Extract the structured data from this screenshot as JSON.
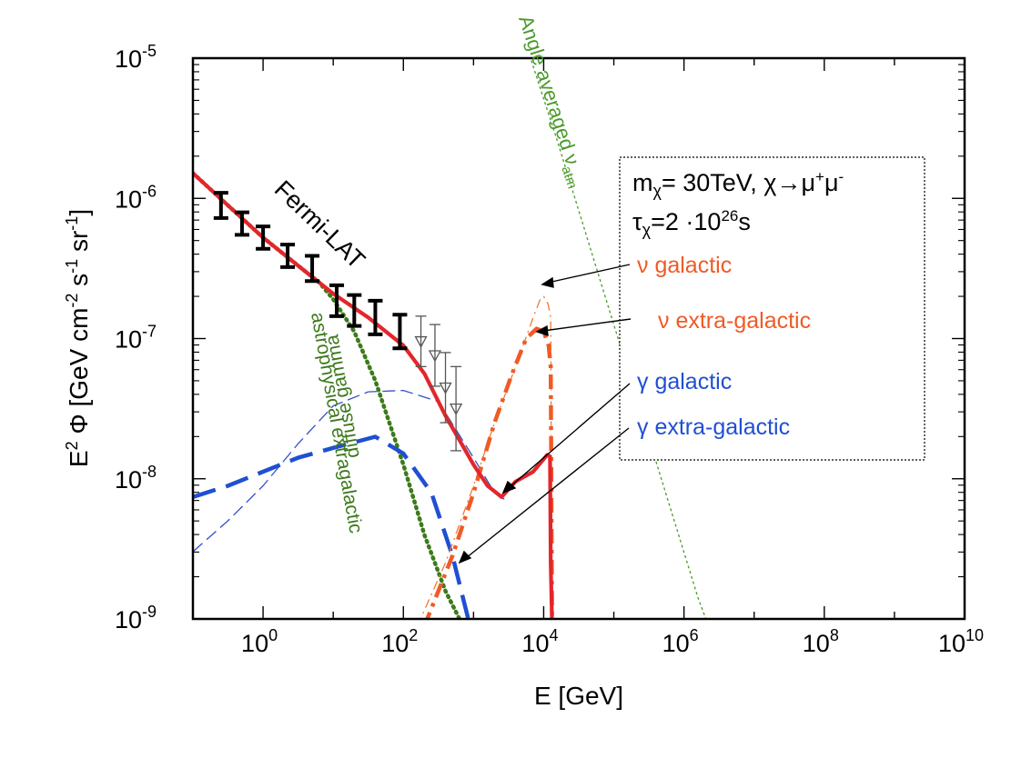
{
  "chart_data": {
    "type": "line",
    "x_scale": "log10",
    "y_scale": "log10",
    "xlim_log10": [
      -1,
      10
    ],
    "ylim_log10": [
      -9,
      -5
    ],
    "x_ticks": [
      {
        "base": "10",
        "exp": "0",
        "log": 0
      },
      {
        "base": "10",
        "exp": "2",
        "log": 2
      },
      {
        "base": "10",
        "exp": "4",
        "log": 4
      },
      {
        "base": "10",
        "exp": "6",
        "log": 6
      },
      {
        "base": "10",
        "exp": "8",
        "log": 8
      },
      {
        "base": "10",
        "exp": "10",
        "log": 10
      }
    ],
    "y_ticks": [
      {
        "base": "10",
        "exp": "-9",
        "log": -9
      },
      {
        "base": "10",
        "exp": "-8",
        "log": -8
      },
      {
        "base": "10",
        "exp": "-7",
        "log": -7
      },
      {
        "base": "10",
        "exp": "-6",
        "log": -6
      },
      {
        "base": "10",
        "exp": "-5",
        "log": -5
      }
    ],
    "xlabel": "E [GeV]",
    "ylabel": "E² Φ [GeV cm⁻² s⁻¹ sr⁻¹]",
    "series": [
      {
        "name": "total (red solid)",
        "color": "#e3262b",
        "style": "solid-thick",
        "points": [
          [
            -1,
            -5.82
          ],
          [
            -0.5,
            -6.05
          ],
          [
            0,
            -6.28
          ],
          [
            0.5,
            -6.48
          ],
          [
            1,
            -6.68
          ],
          [
            1.5,
            -6.85
          ],
          [
            2,
            -7.05
          ],
          [
            2.3,
            -7.25
          ],
          [
            2.6,
            -7.55
          ],
          [
            3,
            -7.9
          ],
          [
            3.2,
            -8.05
          ],
          [
            3.4,
            -8.13
          ],
          [
            3.6,
            -8.02
          ],
          [
            3.85,
            -7.95
          ],
          [
            4.05,
            -7.83
          ],
          [
            4.09,
            -7.84
          ],
          [
            4.1,
            -8.6
          ],
          [
            4.12,
            -9.05
          ]
        ]
      },
      {
        "name": "astrophysical extragalactic diffuse gamma",
        "color": "#3d7a1c",
        "style": "dotted",
        "points": [
          [
            -1,
            -5.82
          ],
          [
            -0.5,
            -6.05
          ],
          [
            0,
            -6.28
          ],
          [
            0.5,
            -6.48
          ],
          [
            0.8,
            -6.6
          ],
          [
            1,
            -6.72
          ],
          [
            1.3,
            -6.95
          ],
          [
            1.6,
            -7.3
          ],
          [
            2,
            -7.9
          ],
          [
            2.3,
            -8.4
          ],
          [
            2.6,
            -8.8
          ],
          [
            2.85,
            -9.05
          ]
        ]
      },
      {
        "name": "γ galactic",
        "color": "#3350c7",
        "style": "thin-dash",
        "points": [
          [
            -1,
            -8.52
          ],
          [
            -0.5,
            -8.3
          ],
          [
            0,
            -8.05
          ],
          [
            0.5,
            -7.75
          ],
          [
            1,
            -7.48
          ],
          [
            1.5,
            -7.38
          ],
          [
            2,
            -7.37
          ],
          [
            2.5,
            -7.45
          ],
          [
            3,
            -7.85
          ],
          [
            3.3,
            -8.1
          ],
          [
            3.45,
            -8.15
          ]
        ]
      },
      {
        "name": "γ extra-galactic",
        "color": "#1f4fd3",
        "style": "long-dash-thick",
        "points": [
          [
            -1,
            -8.13
          ],
          [
            -0.5,
            -8.05
          ],
          [
            0,
            -7.95
          ],
          [
            0.5,
            -7.85
          ],
          [
            1,
            -7.78
          ],
          [
            1.6,
            -7.7
          ],
          [
            2,
            -7.82
          ],
          [
            2.4,
            -8.1
          ],
          [
            2.7,
            -8.55
          ],
          [
            2.85,
            -8.85
          ],
          [
            2.95,
            -9.05
          ]
        ]
      },
      {
        "name": "ν galactic",
        "color": "#f07a35",
        "style": "thin-dash-dot",
        "points": [
          [
            2.2,
            -9.05
          ],
          [
            2.6,
            -8.6
          ],
          [
            3,
            -8.05
          ],
          [
            3.3,
            -7.6
          ],
          [
            3.6,
            -7.2
          ],
          [
            3.85,
            -6.85
          ],
          [
            3.95,
            -6.72
          ],
          [
            4,
            -6.7
          ],
          [
            4.06,
            -6.75
          ],
          [
            4.1,
            -6.85
          ],
          [
            4.12,
            -9.05
          ]
        ]
      },
      {
        "name": "ν extra-galactic",
        "color": "#f05a25",
        "style": "thick-dash-dot",
        "points": [
          [
            2.3,
            -9.05
          ],
          [
            2.7,
            -8.55
          ],
          [
            3,
            -8.1
          ],
          [
            3.3,
            -7.6
          ],
          [
            3.55,
            -7.25
          ],
          [
            3.75,
            -7.0
          ],
          [
            3.9,
            -6.93
          ],
          [
            4,
            -6.95
          ],
          [
            4.07,
            -7.05
          ],
          [
            4.1,
            -7.2
          ],
          [
            4.12,
            -9.05
          ]
        ]
      },
      {
        "name": "Angle averaged ν_atm",
        "color": "#4a9a2a",
        "style": "fine-dash",
        "points": [
          [
            3.8,
            -4.98
          ],
          [
            4.2,
            -5.6
          ],
          [
            4.6,
            -6.25
          ],
          [
            5,
            -6.9
          ],
          [
            5.4,
            -7.55
          ],
          [
            5.8,
            -8.2
          ],
          [
            6.2,
            -8.85
          ],
          [
            6.35,
            -9.05
          ]
        ]
      }
    ],
    "fermi_points": [
      {
        "log_e": -0.6,
        "log_y": -6.05,
        "err": 0.09
      },
      {
        "log_e": -0.3,
        "log_y": -6.18,
        "err": 0.08
      },
      {
        "log_e": 0.0,
        "log_y": -6.28,
        "err": 0.08
      },
      {
        "log_e": 0.35,
        "log_y": -6.41,
        "err": 0.08
      },
      {
        "log_e": 0.7,
        "log_y": -6.5,
        "err": 0.09
      },
      {
        "log_e": 1.05,
        "log_y": -6.73,
        "err": 0.11
      },
      {
        "log_e": 1.3,
        "log_y": -6.8,
        "err": 0.11
      },
      {
        "log_e": 1.6,
        "log_y": -6.85,
        "err": 0.12
      },
      {
        "log_e": 1.95,
        "log_y": -6.95,
        "err": 0.12
      }
    ],
    "fermi_upper": [
      {
        "log_e": 2.25,
        "log_y": -7.02,
        "err": 0.18
      },
      {
        "log_e": 2.45,
        "log_y": -7.12,
        "err": 0.22
      },
      {
        "log_e": 2.6,
        "log_y": -7.35,
        "err": 0.25
      },
      {
        "log_e": 2.75,
        "log_y": -7.5,
        "err": 0.3
      }
    ]
  },
  "labels": {
    "fermi": "Fermi-LAT",
    "astro_line1": "astrophysical extragalactic",
    "astro_line2": "diffuse gamma",
    "atm": "Angle averaged ν",
    "atm_sub": "atm",
    "legend_line1_a": "m",
    "legend_line1_chi": "χ",
    "legend_line1_b": "= 30TeV, χ→μ",
    "legend_plus": "+",
    "legend_mu": "μ",
    "legend_minus": "-",
    "legend_line2_a": "τ",
    "legend_line2_b": "=2 ·10",
    "legend_exp": "26",
    "legend_line2_s": "s",
    "nu_gal": "ν galactic",
    "nu_xgal": "ν extra-galactic",
    "g_gal": "γ galactic",
    "g_xgal": "γ extra-galactic",
    "ylabel_main": "E",
    "ylabel_sup2": "2",
    "ylabel_rest": " Φ [GeV cm",
    "ylabel_sup_m2": "-2",
    "ylabel_s": " s",
    "ylabel_sup_m1a": "-1",
    "ylabel_sr": " sr",
    "ylabel_sup_m1b": "-1",
    "ylabel_close": "]"
  },
  "colors": {
    "red": "#e3262b",
    "green": "#3d7a1c",
    "orange": "#f05a25",
    "blue": "#1f4fd3"
  }
}
